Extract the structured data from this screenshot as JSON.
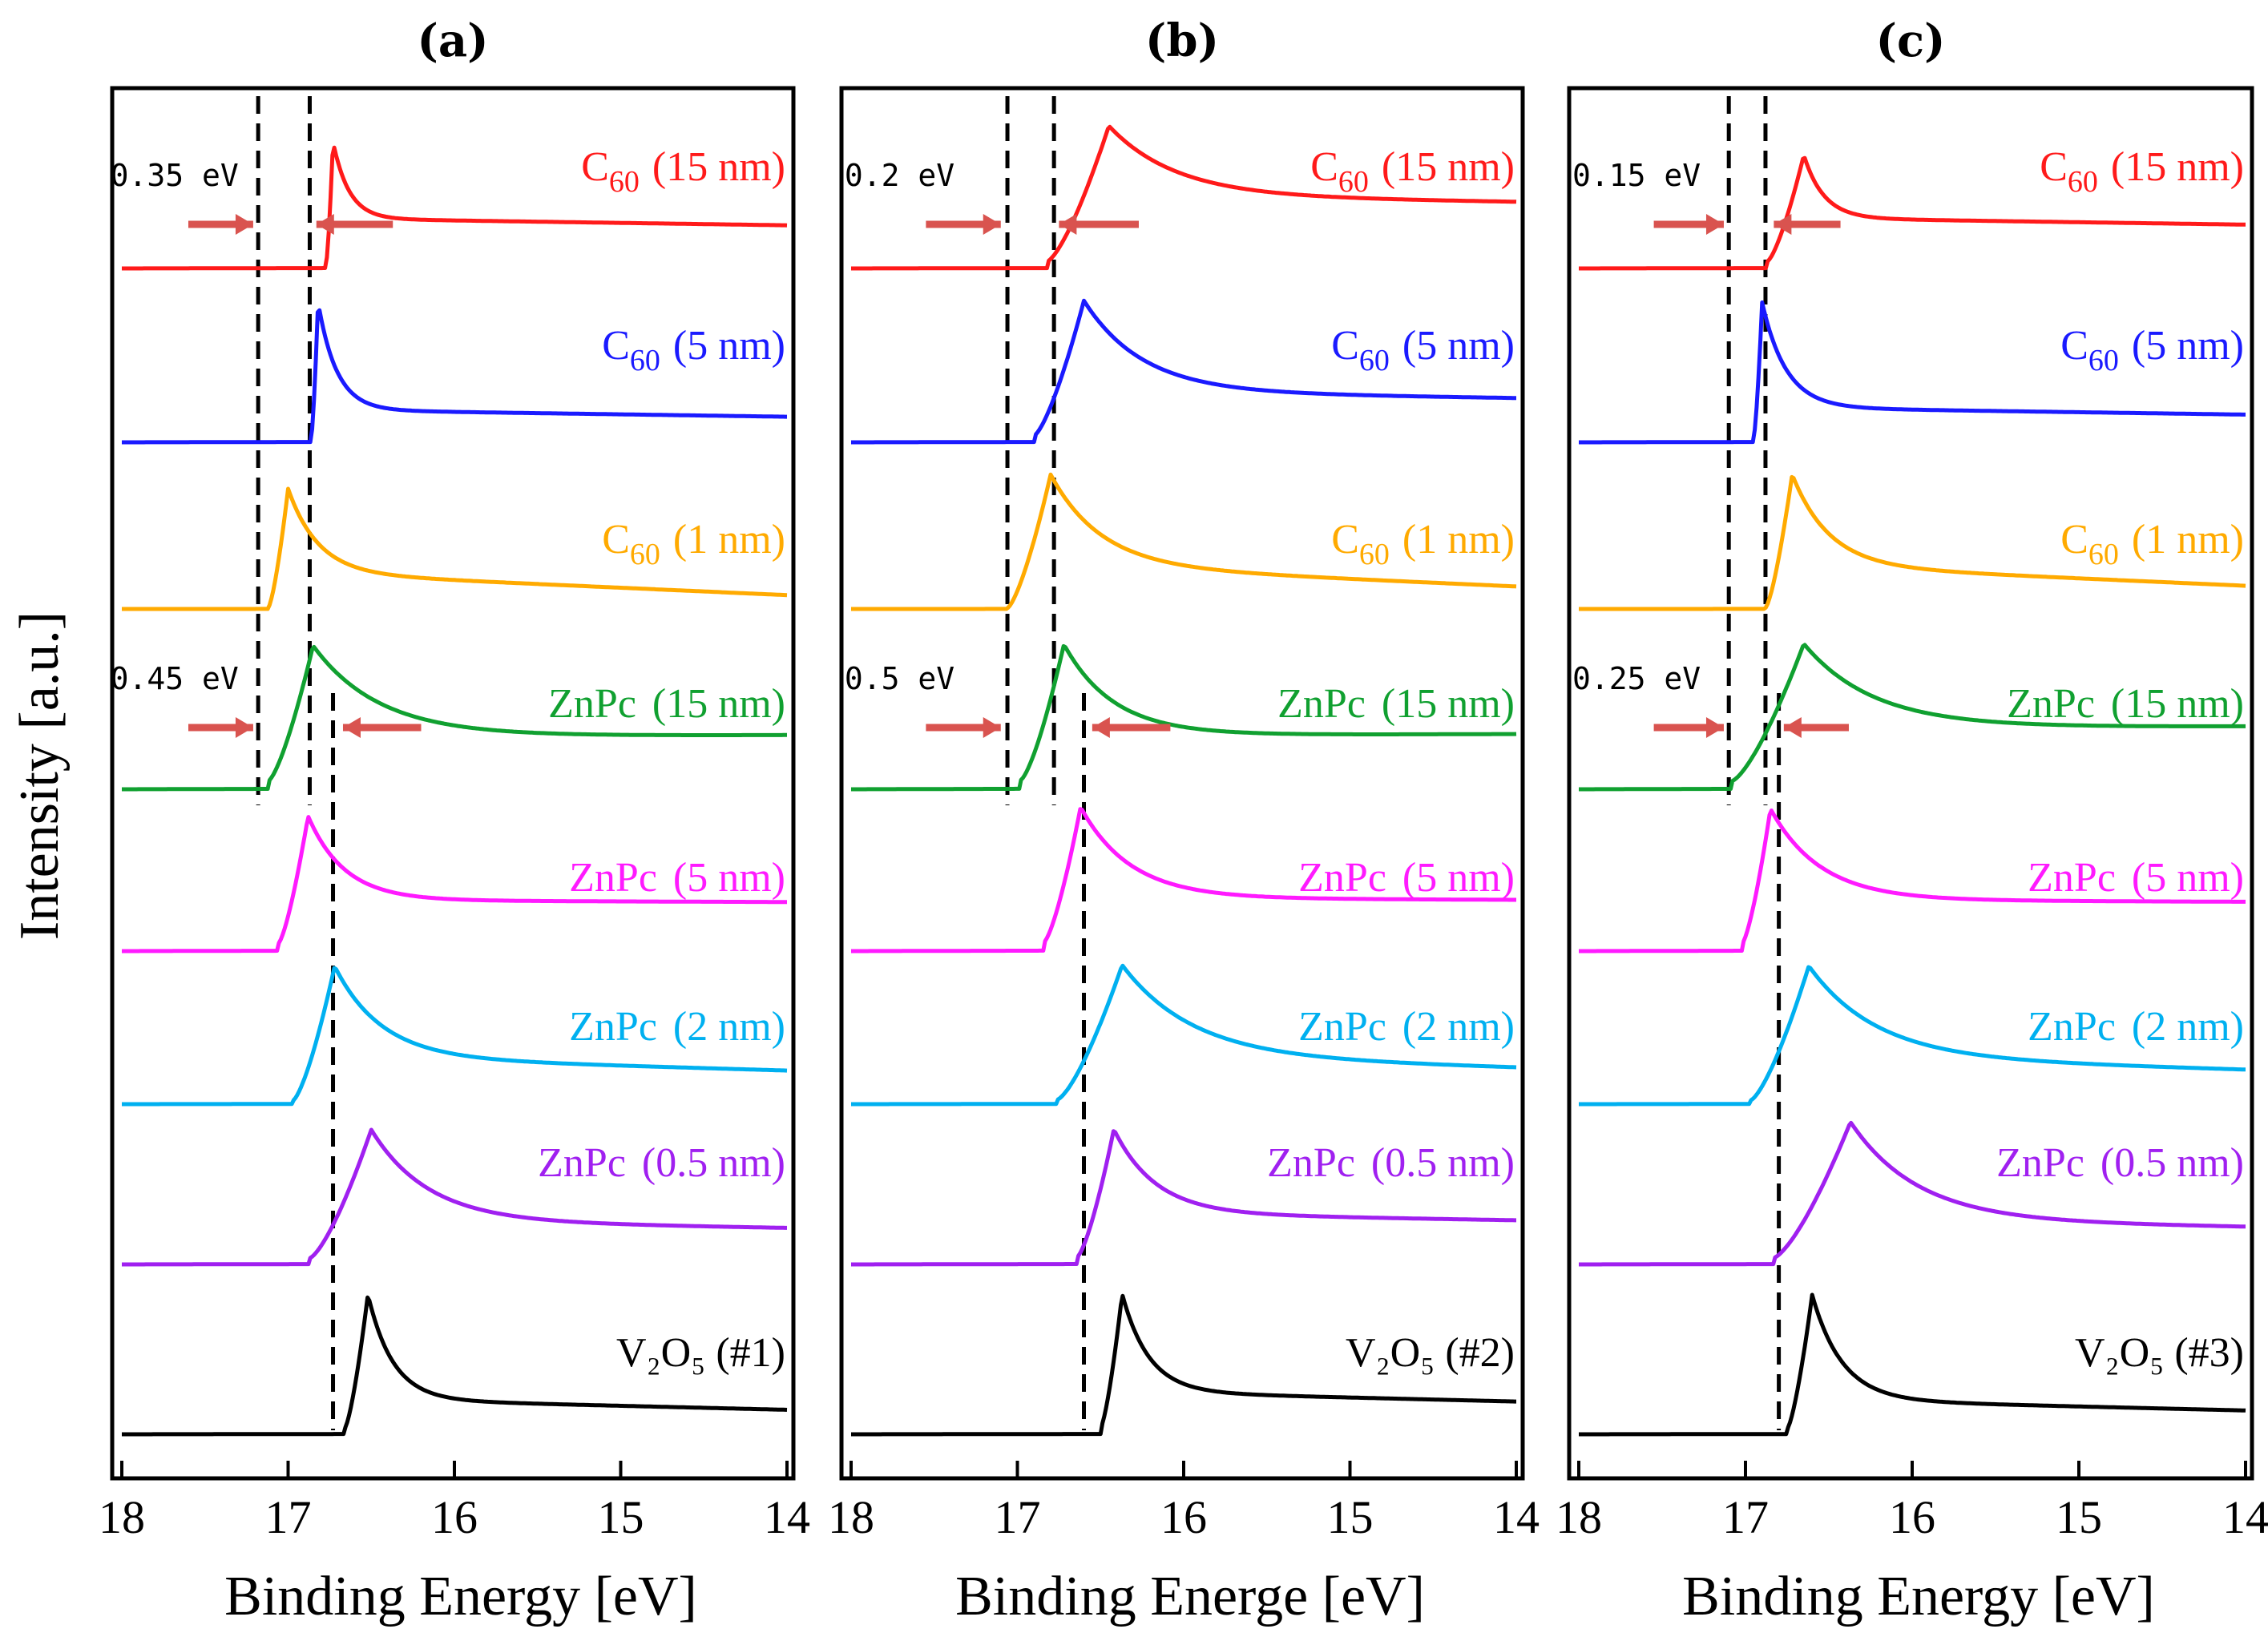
{
  "chart_data": {
    "type": "line",
    "description_note": "UPS secondary-electron cutoff spectra, curves vertically offset",
    "y_label": "Intensity [a.u.]",
    "x_range": [
      18,
      14
    ],
    "x_ticks": [
      "18",
      "17",
      "16",
      "15",
      "14"
    ],
    "colors": {
      "c60_15": "#ff1a1a",
      "c60_5": "#1a1aff",
      "c60_1": "#ffaa00",
      "znpc_15": "#10a030",
      "znpc_5": "#ff1aff",
      "znpc_2": "#00b0f0",
      "znpc_05": "#a020f0",
      "v2o5": "#000000",
      "arrow": "#d9534f"
    },
    "panels": [
      {
        "title": "(a)",
        "x_label": "Binding Energy [eV]",
        "traces": [
          {
            "id": "c60_15",
            "color": "#ff1a1a",
            "label_main": "C",
            "label_sub": "60",
            "label_thick": "(15 nm)",
            "onset": 16.77,
            "peak": 16.73,
            "width": 0.06,
            "height": 0.85,
            "level": 0.3,
            "sharp": true
          },
          {
            "id": "c60_5",
            "color": "#1a1aff",
            "label_main": "C",
            "label_sub": "60",
            "label_thick": "(5 nm)",
            "onset": 16.86,
            "peak": 16.82,
            "width": 0.07,
            "height": 0.95,
            "level": 0.18,
            "sharp": true
          },
          {
            "id": "c60_1",
            "color": "#ffaa00",
            "label_main": "C",
            "label_sub": "60",
            "label_thick": "(1 nm)",
            "onset": 17.12,
            "peak": 17.0,
            "width": 0.18,
            "height": 0.85,
            "level": 0.25
          },
          {
            "id": "znpc_15",
            "color": "#10a030",
            "label_main": "ZnPc",
            "label_sub": "",
            "label_thick": "(15 nm)",
            "onset": 17.12,
            "peak": 16.85,
            "width": 0.4,
            "height": 0.95,
            "level": 0.3
          },
          {
            "id": "znpc_5",
            "color": "#ff1aff",
            "label_main": "ZnPc",
            "label_sub": "",
            "label_thick": "(5 nm)",
            "onset": 17.06,
            "peak": 16.88,
            "width": 0.22,
            "height": 0.9,
            "level": 0.3
          },
          {
            "id": "znpc_2",
            "color": "#00b0f0",
            "label_main": "ZnPc",
            "label_sub": "",
            "label_thick": "(2 nm)",
            "onset": 16.97,
            "peak": 16.72,
            "width": 0.28,
            "height": 0.95,
            "level": 0.3
          },
          {
            "id": "znpc_05",
            "color": "#a020f0",
            "label_main": "ZnPc",
            "label_sub": "",
            "label_thick": "(0.5 nm)",
            "onset": 16.87,
            "peak": 16.5,
            "width": 0.34,
            "height": 0.9,
            "level": 0.25
          },
          {
            "id": "v2o5",
            "color": "#000000",
            "label_main": "V₂O₅ (#1)",
            "label_sub": "",
            "label_thick": "",
            "onset": 16.66,
            "peak": 16.52,
            "width": 0.15,
            "height": 0.95,
            "level": 0.2
          }
        ],
        "vlines": [
          17.18,
          16.87,
          16.73
        ],
        "annotations": [
          {
            "text": "0.35 eV",
            "x": 17.78,
            "row": 0,
            "arrow_from": 17.6,
            "arrow_to": 17.21,
            "arrow2_from": 16.37,
            "arrow2_to": 16.83
          },
          {
            "text": "0.45 eV",
            "x": 17.78,
            "row": 3,
            "arrow_from": 17.6,
            "arrow_to": 17.21,
            "arrow2_from": 16.2,
            "arrow2_to": 16.67
          }
        ]
      },
      {
        "title": "(b)",
        "x_label": "Binding Energe [eV]",
        "traces": [
          {
            "id": "c60_15",
            "color": "#ff1a1a",
            "label_main": "C",
            "label_sub": "60",
            "label_thick": "(15 nm)",
            "onset": 16.82,
            "peak": 16.45,
            "width": 0.4,
            "height": 0.95,
            "level": 0.45
          },
          {
            "id": "c60_5",
            "color": "#1a1aff",
            "label_main": "C",
            "label_sub": "60",
            "label_thick": "(5 nm)",
            "onset": 16.9,
            "peak": 16.6,
            "width": 0.35,
            "height": 0.95,
            "level": 0.3
          },
          {
            "id": "c60_1",
            "color": "#ffaa00",
            "label_main": "C",
            "label_sub": "60",
            "label_thick": "(1 nm)",
            "onset": 17.06,
            "peak": 16.8,
            "width": 0.3,
            "height": 0.95,
            "level": 0.3
          },
          {
            "id": "znpc_15",
            "color": "#10a030",
            "label_main": "ZnPc",
            "label_sub": "",
            "label_thick": "(15 nm)",
            "onset": 16.98,
            "peak": 16.72,
            "width": 0.3,
            "height": 0.95,
            "level": 0.3
          },
          {
            "id": "znpc_5",
            "color": "#ff1aff",
            "label_main": "ZnPc",
            "label_sub": "",
            "label_thick": "(5 nm)",
            "onset": 16.84,
            "peak": 16.62,
            "width": 0.3,
            "height": 0.95,
            "level": 0.3
          },
          {
            "id": "znpc_2",
            "color": "#00b0f0",
            "label_main": "ZnPc",
            "label_sub": "",
            "label_thick": "(2 nm)",
            "onset": 16.76,
            "peak": 16.37,
            "width": 0.42,
            "height": 0.95,
            "level": 0.3
          },
          {
            "id": "znpc_05",
            "color": "#a020f0",
            "label_main": "ZnPc",
            "label_sub": "",
            "label_thick": "(0.5 nm)",
            "onset": 16.64,
            "peak": 16.42,
            "width": 0.25,
            "height": 0.9,
            "level": 0.3
          },
          {
            "id": "v2o5",
            "color": "#000000",
            "label_main": "V₂O₅ (#2)",
            "label_sub": "",
            "label_thick": "",
            "onset": 16.5,
            "peak": 16.37,
            "width": 0.16,
            "height": 0.95,
            "level": 0.25
          }
        ],
        "vlines": [
          17.06,
          16.78,
          16.6
        ],
        "annotations": [
          {
            "text": "0.2 eV",
            "x": 17.75,
            "row": 0,
            "arrow_from": 17.55,
            "arrow_to": 17.1,
            "arrow2_from": 16.27,
            "arrow2_to": 16.75
          },
          {
            "text": "0.5 eV",
            "x": 17.75,
            "row": 3,
            "arrow_from": 17.55,
            "arrow_to": 17.1,
            "arrow2_from": 16.08,
            "arrow2_to": 16.55
          }
        ]
      },
      {
        "title": "(c)",
        "x_label": "Binding Energy [eV]",
        "traces": [
          {
            "id": "c60_15",
            "color": "#ff1a1a",
            "label_main": "C",
            "label_sub": "60",
            "label_thick": "(15 nm)",
            "onset": 16.87,
            "peak": 16.65,
            "width": 0.12,
            "height": 0.75,
            "level": 0.3,
            "shoulder": true
          },
          {
            "id": "c60_5",
            "color": "#1a1aff",
            "label_main": "C",
            "label_sub": "60",
            "label_thick": "(5 nm)",
            "onset": 16.95,
            "peak": 16.9,
            "width": 0.09,
            "height": 0.95,
            "level": 0.2,
            "sharp": true
          },
          {
            "id": "c60_1",
            "color": "#ffaa00",
            "label_main": "C",
            "label_sub": "60",
            "label_thick": "(1 nm)",
            "onset": 16.88,
            "peak": 16.72,
            "width": 0.22,
            "height": 0.95,
            "level": 0.3
          },
          {
            "id": "znpc_15",
            "color": "#10a030",
            "label_main": "ZnPc",
            "label_sub": "",
            "label_thick": "(15 nm)",
            "onset": 17.08,
            "peak": 16.65,
            "width": 0.42,
            "height": 0.95,
            "level": 0.35
          },
          {
            "id": "znpc_5",
            "color": "#ff1aff",
            "label_main": "ZnPc",
            "label_sub": "",
            "label_thick": "(5 nm)",
            "onset": 17.02,
            "peak": 16.85,
            "width": 0.3,
            "height": 0.95,
            "level": 0.3
          },
          {
            "id": "znpc_2",
            "color": "#00b0f0",
            "label_main": "ZnPc",
            "label_sub": "",
            "label_thick": "(2 nm)",
            "onset": 16.97,
            "peak": 16.62,
            "width": 0.4,
            "height": 0.95,
            "level": 0.3
          },
          {
            "id": "znpc_05",
            "color": "#a020f0",
            "label_main": "ZnPc",
            "label_sub": "",
            "label_thick": "(0.5 nm)",
            "onset": 16.83,
            "peak": 16.37,
            "width": 0.4,
            "height": 0.95,
            "level": 0.25
          },
          {
            "id": "v2o5",
            "color": "#000000",
            "label_main": "V₂O₅ (#3)",
            "label_sub": "",
            "label_thick": "",
            "onset": 16.75,
            "peak": 16.6,
            "width": 0.18,
            "height": 0.95,
            "level": 0.2
          }
        ],
        "vlines": [
          17.1,
          16.88,
          16.8
        ],
        "annotations": [
          {
            "text": "0.15 eV",
            "x": 17.75,
            "row": 0,
            "arrow_from": 17.55,
            "arrow_to": 17.13,
            "arrow2_from": 16.43,
            "arrow2_to": 16.83
          },
          {
            "text": "0.25 eV",
            "x": 17.75,
            "row": 3,
            "arrow_from": 17.55,
            "arrow_to": 17.13,
            "arrow2_from": 16.38,
            "arrow2_to": 16.77
          }
        ]
      }
    ]
  }
}
